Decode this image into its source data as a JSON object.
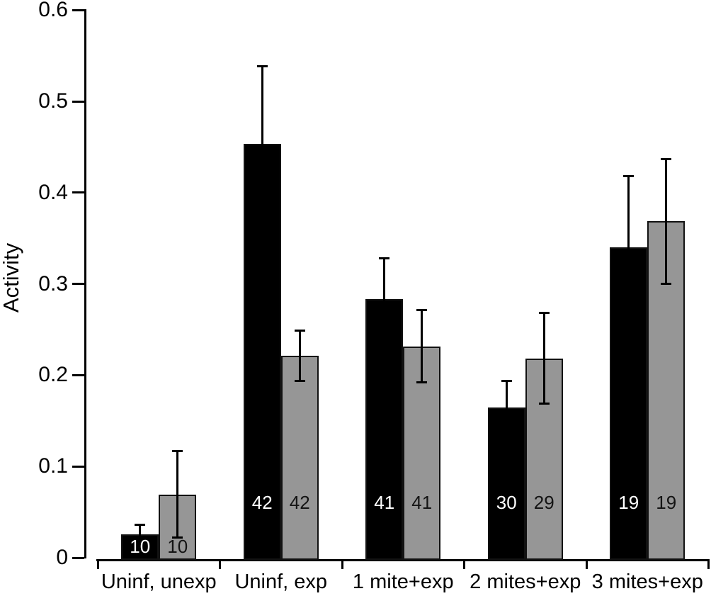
{
  "chart_data": {
    "type": "bar",
    "title": "",
    "xlabel": "",
    "ylabel": "Activity",
    "ylim": [
      0,
      0.6
    ],
    "ytick_step": 0.1,
    "ytick_labels": [
      "0",
      "0.1",
      "0.2",
      "0.3",
      "0.4",
      "0.5",
      "0.6"
    ],
    "grid": false,
    "legend_position": "none",
    "categories": [
      "Uninf, unexp",
      "Uninf, exp",
      "1 mite+exp",
      "2 mites+exp",
      "3 mites+exp"
    ],
    "series": [
      {
        "name": "black bars",
        "color": "#000000",
        "count_label_color": "#ffffff",
        "whiskers": "upper",
        "values": [
          0.027,
          0.455,
          0.285,
          0.166,
          0.342
        ],
        "errors": [
          0.011,
          0.085,
          0.045,
          0.03,
          0.078
        ],
        "counts": [
          10,
          42,
          41,
          30,
          19
        ]
      },
      {
        "name": "gray bars",
        "color": "#969696",
        "count_label_color": "#141414",
        "whiskers": "both",
        "values": [
          0.071,
          0.223,
          0.233,
          0.22,
          0.37
        ],
        "errors": [
          0.048,
          0.028,
          0.04,
          0.05,
          0.069
        ],
        "counts": [
          10,
          42,
          41,
          29,
          19
        ]
      }
    ]
  }
}
